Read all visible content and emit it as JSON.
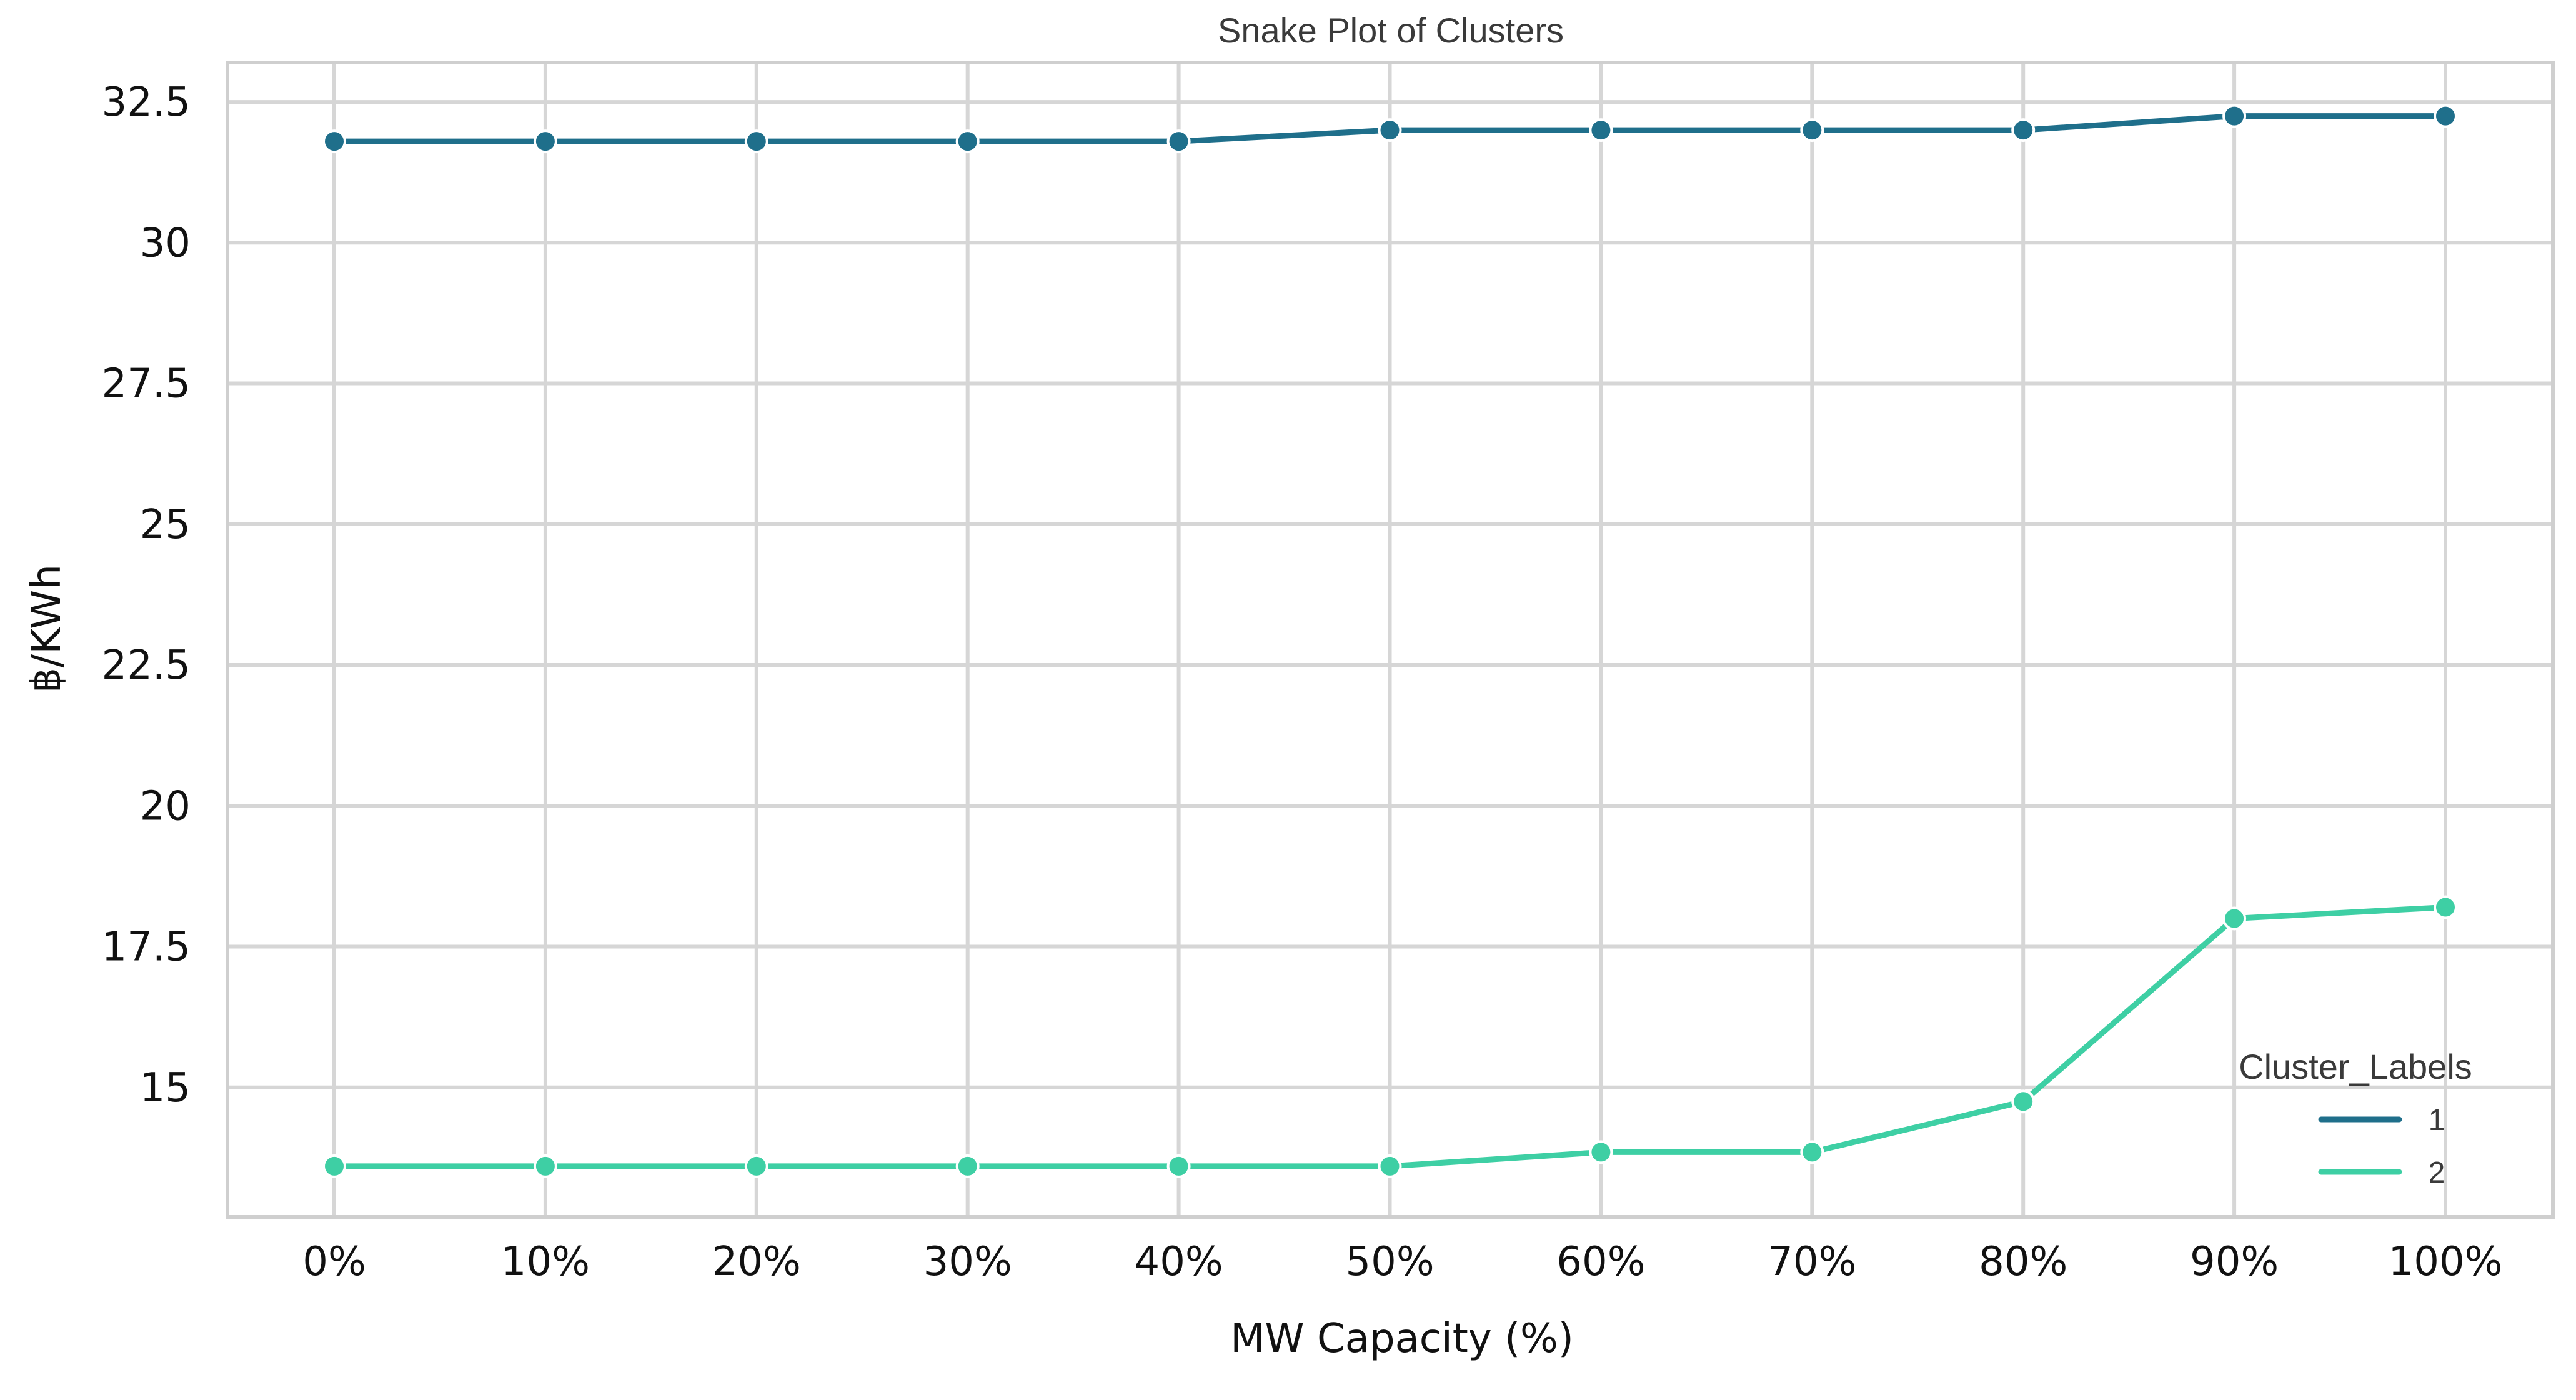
{
  "chart_data": {
    "type": "line",
    "title": "Snake Plot of Clusters",
    "xlabel": "MW Capacity (%)",
    "ylabel": "฿/KWh",
    "categories": [
      "0%",
      "10%",
      "20%",
      "30%",
      "40%",
      "50%",
      "60%",
      "70%",
      "80%",
      "90%",
      "100%"
    ],
    "yticks": [
      15,
      17.5,
      20,
      22.5,
      25,
      27.5,
      30,
      32.5
    ],
    "ytick_labels": [
      "15",
      "17.5",
      "20",
      "22.5",
      "25",
      "27.5",
      "30",
      "32.5"
    ],
    "ylim": [
      12.7,
      33.2
    ],
    "grid": true,
    "legend": {
      "title": "Cluster_Labels",
      "placement": "bottom-right"
    },
    "series": [
      {
        "name": "1",
        "color": "#1f6f8b",
        "values": [
          31.8,
          31.8,
          31.8,
          31.8,
          31.8,
          32.0,
          32.0,
          32.0,
          32.0,
          32.25,
          32.25
        ]
      },
      {
        "name": "2",
        "color": "#3ecfa4",
        "values": [
          13.6,
          13.6,
          13.6,
          13.6,
          13.6,
          13.6,
          13.85,
          13.85,
          14.75,
          18.0,
          18.2
        ]
      }
    ]
  }
}
